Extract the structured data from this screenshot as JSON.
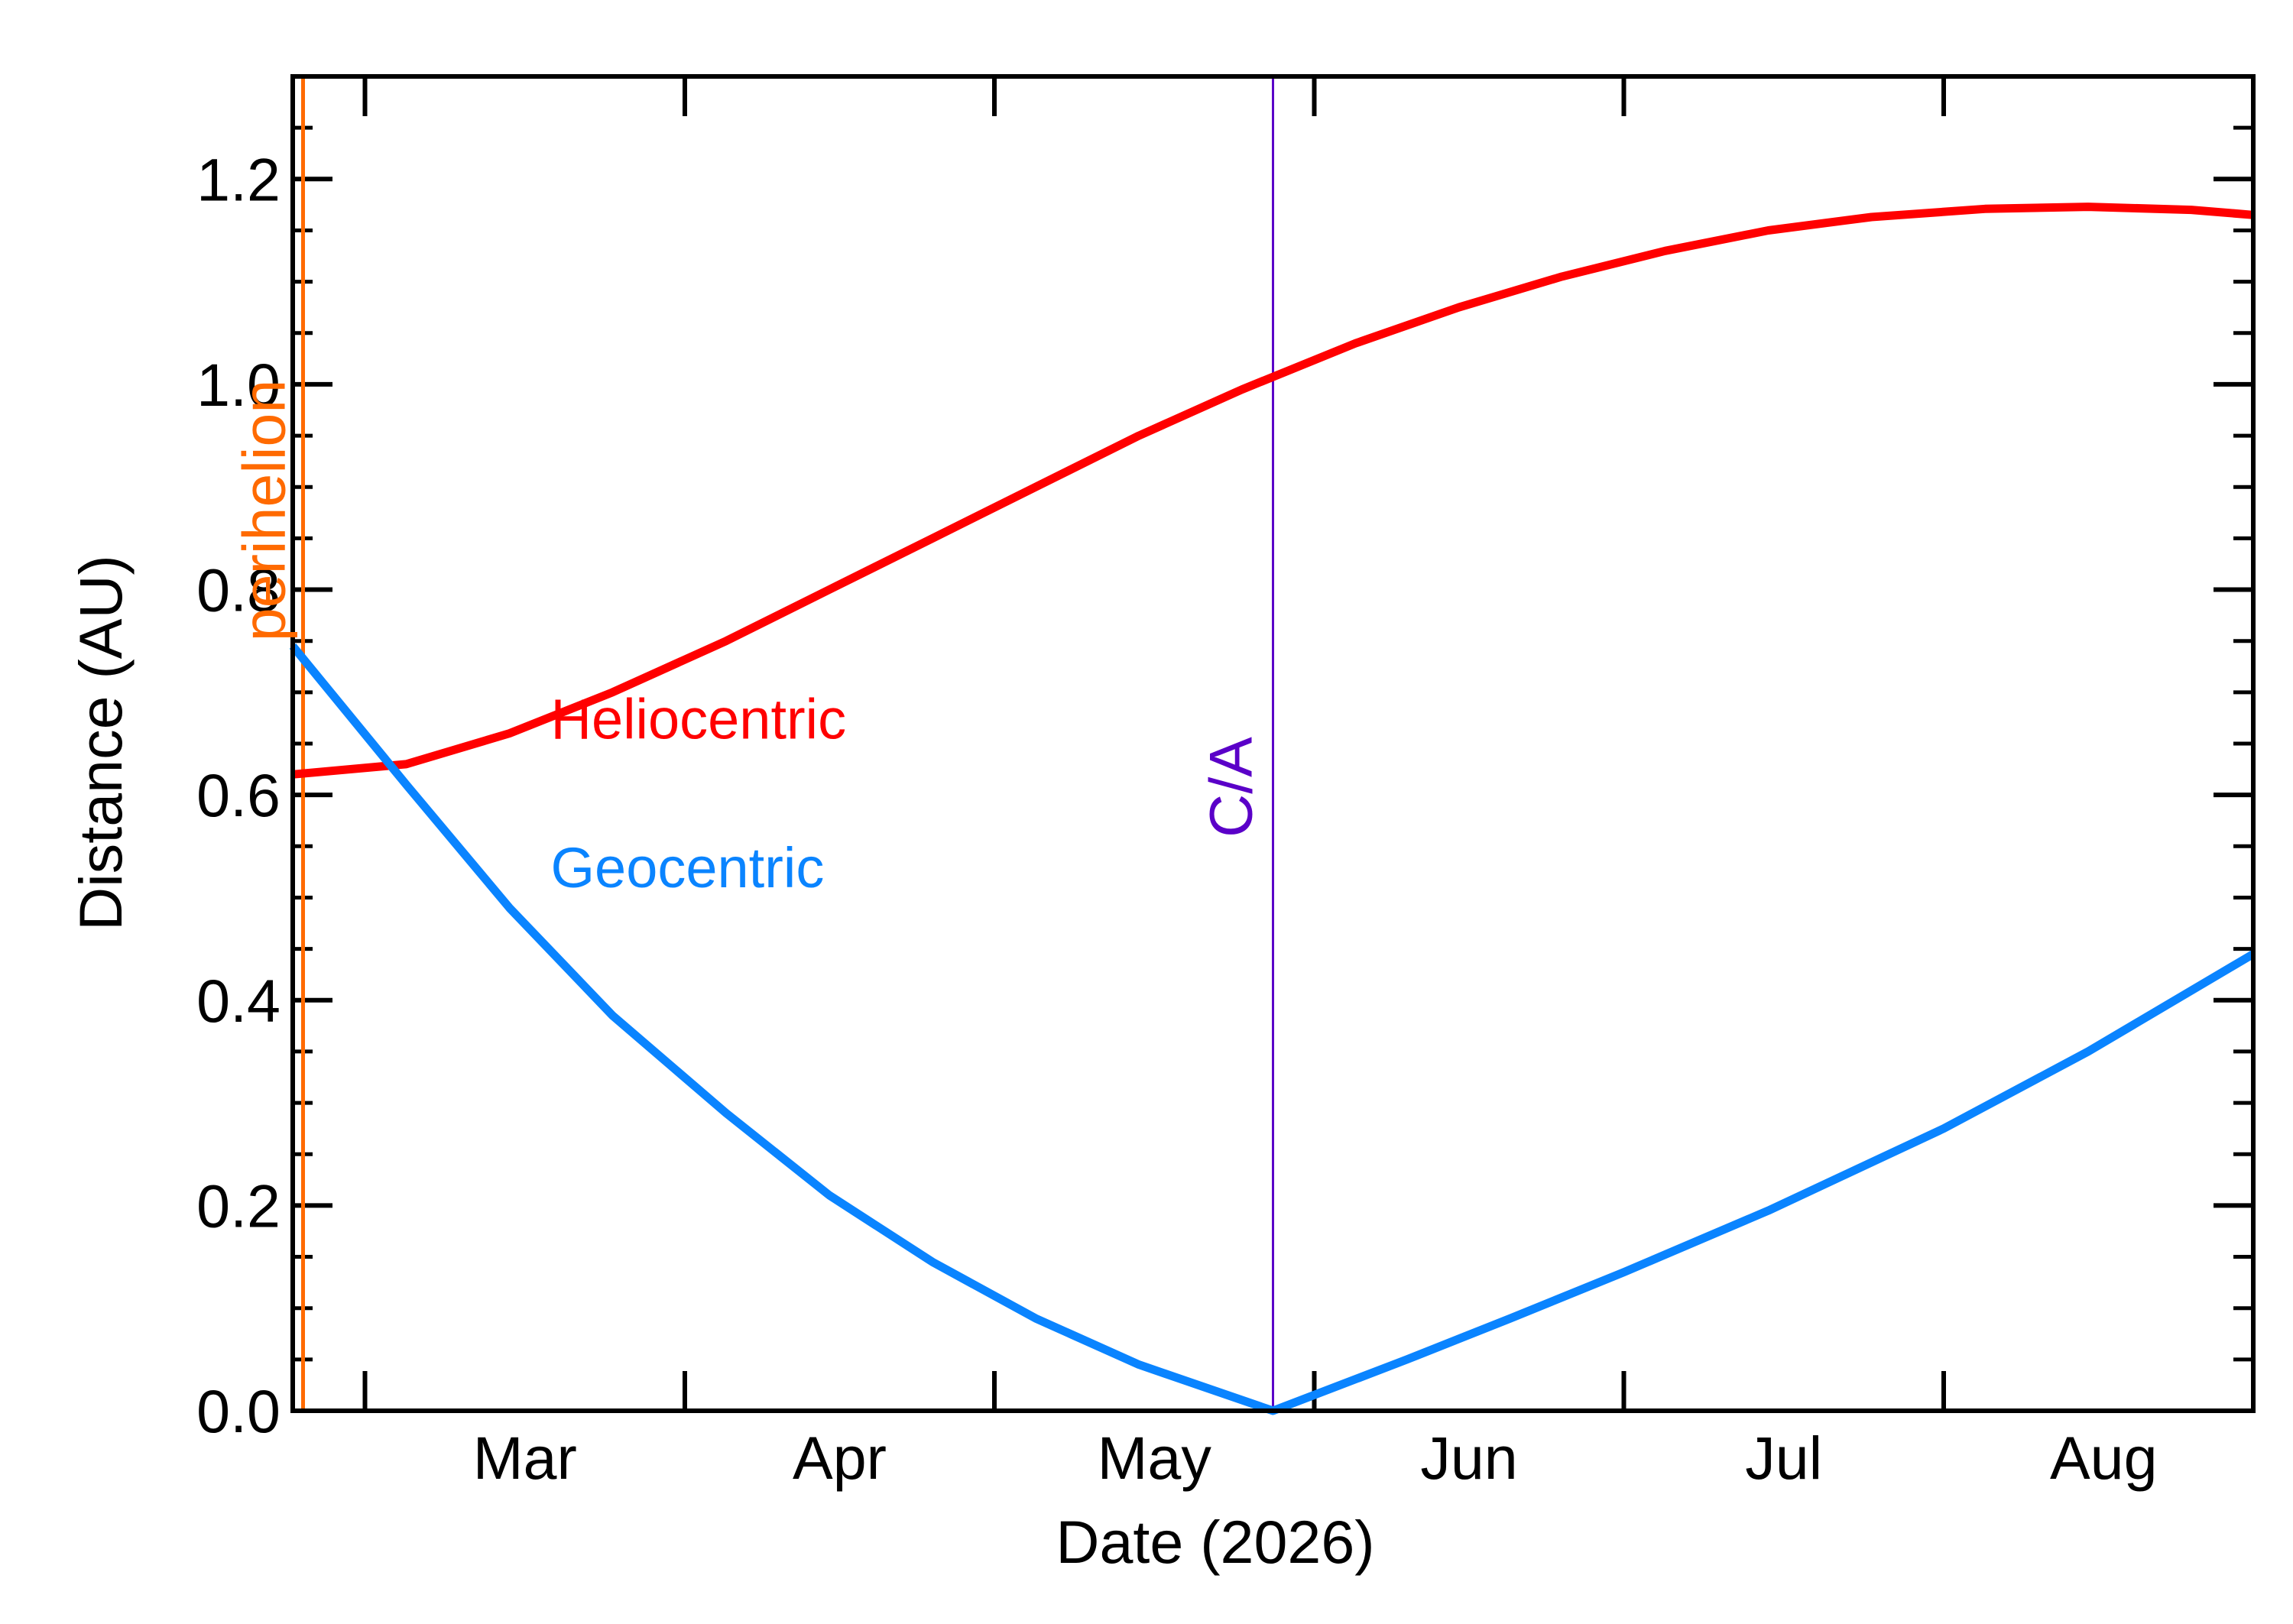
{
  "chart_data": {
    "type": "line",
    "xlabel": "Date (2026)",
    "ylabel": "Distance (AU)",
    "x_domain": [
      "2026-02-22",
      "2026-08-31"
    ],
    "ylim": [
      0.0,
      1.3
    ],
    "x_ticks": [
      {
        "date": "2026-03-01",
        "label": "Mar"
      },
      {
        "date": "2026-04-01",
        "label": "Apr"
      },
      {
        "date": "2026-05-01",
        "label": "May"
      },
      {
        "date": "2026-06-01",
        "label": "Jun"
      },
      {
        "date": "2026-07-01",
        "label": "Jul"
      },
      {
        "date": "2026-08-01",
        "label": "Aug"
      }
    ],
    "y_ticks": [
      {
        "value": 0.0,
        "label": "0.0"
      },
      {
        "value": 0.2,
        "label": "0.2"
      },
      {
        "value": 0.4,
        "label": "0.4"
      },
      {
        "value": 0.6,
        "label": "0.6"
      },
      {
        "value": 0.8,
        "label": "0.8"
      },
      {
        "value": 1.0,
        "label": "1.0"
      },
      {
        "value": 1.2,
        "label": "1.2"
      }
    ],
    "series": [
      {
        "name": "Heliocentric",
        "color": "#ff0000",
        "points": [
          [
            "2026-02-22",
            0.62
          ],
          [
            "2026-03-05",
            0.63
          ],
          [
            "2026-03-15",
            0.66
          ],
          [
            "2026-03-25",
            0.7
          ],
          [
            "2026-04-05",
            0.75
          ],
          [
            "2026-04-15",
            0.8
          ],
          [
            "2026-04-25",
            0.85
          ],
          [
            "2026-05-05",
            0.9
          ],
          [
            "2026-05-15",
            0.95
          ],
          [
            "2026-05-25",
            0.995
          ],
          [
            "2026-06-05",
            1.04
          ],
          [
            "2026-06-15",
            1.075
          ],
          [
            "2026-06-25",
            1.105
          ],
          [
            "2026-07-05",
            1.13
          ],
          [
            "2026-07-15",
            1.15
          ],
          [
            "2026-07-25",
            1.163
          ],
          [
            "2026-08-05",
            1.171
          ],
          [
            "2026-08-15",
            1.173
          ],
          [
            "2026-08-25",
            1.17
          ],
          [
            "2026-08-31",
            1.165
          ]
        ]
      },
      {
        "name": "Geocentric",
        "color": "#0a84ff",
        "points": [
          [
            "2026-02-22",
            0.745
          ],
          [
            "2026-03-05",
            0.61
          ],
          [
            "2026-03-15",
            0.49
          ],
          [
            "2026-03-25",
            0.385
          ],
          [
            "2026-04-05",
            0.29
          ],
          [
            "2026-04-15",
            0.21
          ],
          [
            "2026-04-25",
            0.145
          ],
          [
            "2026-05-05",
            0.09
          ],
          [
            "2026-05-15",
            0.045
          ],
          [
            "2026-05-28",
            0.0
          ],
          [
            "2026-06-10",
            0.05
          ],
          [
            "2026-06-20",
            0.09
          ],
          [
            "2026-07-01",
            0.135
          ],
          [
            "2026-07-15",
            0.195
          ],
          [
            "2026-08-01",
            0.275
          ],
          [
            "2026-08-15",
            0.35
          ],
          [
            "2026-08-31",
            0.445
          ]
        ]
      }
    ],
    "annotations": [
      {
        "name": "perihelion",
        "date": "2026-02-23",
        "color": "#ff6a00",
        "label": "perihelion"
      },
      {
        "name": "closest-approach",
        "date": "2026-05-28",
        "color": "#5a00c8",
        "label": "C/A"
      }
    ],
    "series_labels": [
      {
        "text": "Heliocentric",
        "color": "#ff0000",
        "date": "2026-03-19",
        "value": 0.655
      },
      {
        "text": "Geocentric",
        "color": "#0a84ff",
        "date": "2026-03-19",
        "value": 0.51
      }
    ],
    "grid": false,
    "legend": "inline labels"
  }
}
